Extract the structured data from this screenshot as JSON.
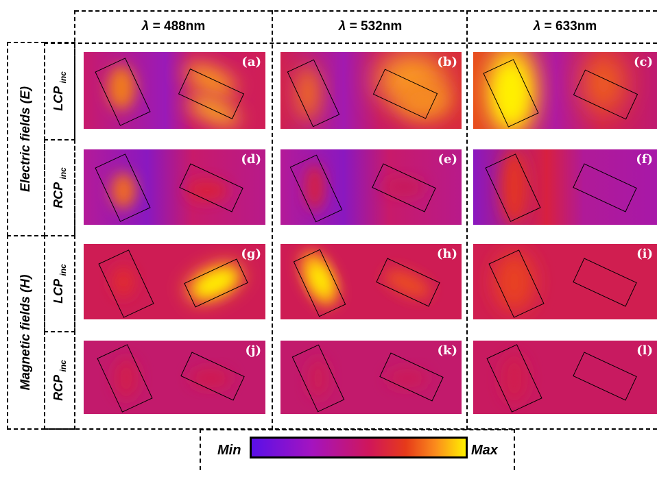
{
  "columns": [
    {
      "lambda": "λ",
      "value": " = 488nm"
    },
    {
      "lambda": "λ",
      "value": " = 532nm"
    },
    {
      "lambda": "λ",
      "value": " = 633nm"
    }
  ],
  "row_groups": {
    "electric": "Electric fields (E)",
    "magnetic": "Magnetic fields (H)"
  },
  "polarizations": [
    {
      "main": "LCP ",
      "sub": "inc"
    },
    {
      "main": "RCP ",
      "sub": "inc"
    },
    {
      "main": "LCP ",
      "sub": "inc"
    },
    {
      "main": "RCP ",
      "sub": "inc"
    }
  ],
  "panels": [
    "(a)",
    "(b)",
    "(c)",
    "(d)",
    "(e)",
    "(f)",
    "(g)",
    "(h)",
    "(i)",
    "(j)",
    "(k)",
    "(l)"
  ],
  "colorbar": {
    "min_label": "Min",
    "max_label": "Max",
    "colors": [
      "#5a10e8",
      "#a414c0",
      "#d0165a",
      "#e63a1a",
      "#fb8c1c",
      "#fff000"
    ]
  },
  "colors": {
    "background_field": "#cf1c5a",
    "field_min": "#7a18c8",
    "field_max": "#fff000"
  }
}
